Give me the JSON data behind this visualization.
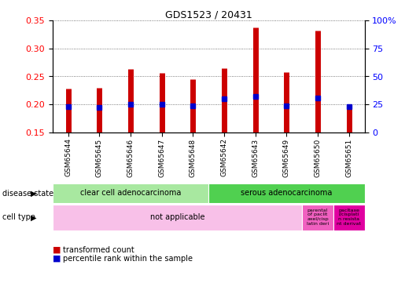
{
  "title": "GDS1523 / 20431",
  "samples": [
    "GSM65644",
    "GSM65645",
    "GSM65646",
    "GSM65647",
    "GSM65648",
    "GSM65642",
    "GSM65643",
    "GSM65649",
    "GSM65650",
    "GSM65651"
  ],
  "transformed_counts": [
    0.228,
    0.23,
    0.264,
    0.256,
    0.245,
    0.265,
    0.338,
    0.258,
    0.332,
    0.192
  ],
  "percentile_ranks": [
    23,
    22,
    25,
    25,
    24,
    30,
    32,
    24,
    31,
    23
  ],
  "ylim_left": [
    0.15,
    0.35
  ],
  "ylim_right": [
    0,
    100
  ],
  "yticks_left": [
    0.15,
    0.2,
    0.25,
    0.3,
    0.35
  ],
  "yticks_right": [
    0,
    25,
    50,
    75,
    100
  ],
  "ytick_labels_right": [
    "0",
    "25",
    "50",
    "75",
    "100%"
  ],
  "bar_color": "#cc0000",
  "dot_color": "#0000cc",
  "disease_state_groups": [
    {
      "label": "clear cell adenocarcinoma",
      "start": 0,
      "end": 5,
      "color": "#a8e8a0"
    },
    {
      "label": "serous adenocarcinoma",
      "start": 5,
      "end": 10,
      "color": "#50d050"
    }
  ],
  "cell_type_groups": [
    {
      "label": "not applicable",
      "start": 0,
      "end": 8,
      "color": "#f8c0e8"
    },
    {
      "label": "parental\nof paclit\naxel/cisp\nlatin deri",
      "start": 8,
      "end": 9,
      "color": "#f060c0"
    },
    {
      "label": "pacltaxe\nl/cisplati\nn resista\nnt derivat",
      "start": 9,
      "end": 10,
      "color": "#e000a0"
    }
  ],
  "disease_state_label": "disease state",
  "cell_type_label": "cell type",
  "legend_bar_label": "transformed count",
  "legend_dot_label": "percentile rank within the sample",
  "grid_dotted_color": "#555555",
  "background_color": "#ffffff",
  "plot_bg_color": "#ffffff"
}
